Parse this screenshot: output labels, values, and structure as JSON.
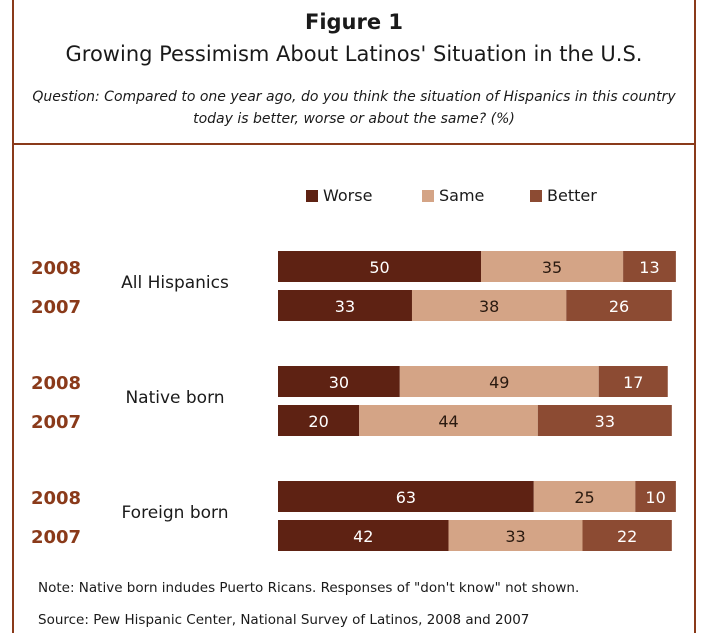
{
  "figure_label": "Figure 1",
  "title": "Growing Pessimism About Latinos' Situation in the U.S.",
  "question": "Question: Compared to one year ago, do you think the situation of Hispanics in this country today is better, worse or about the same? (%)",
  "note": "Note: Native born indudes Puerto Ricans. Responses of \"don't know\" not shown.",
  "source": "Source: Pew Hispanic Center, National Survey of Latinos, 2008 and 2007",
  "chart_data": {
    "type": "bar",
    "orientation": "horizontal",
    "stacked": true,
    "legend": [
      {
        "name": "Worse",
        "color": "#5e2213"
      },
      {
        "name": "Same",
        "color": "#d4a486"
      },
      {
        "name": "Better",
        "color": "#8c4b33"
      }
    ],
    "legend_position": "top",
    "groups": [
      {
        "label": "All Hispanics",
        "rows": [
          {
            "year": "2008",
            "values": [
              50,
              35,
              13
            ]
          },
          {
            "year": "2007",
            "values": [
              33,
              38,
              26
            ]
          }
        ]
      },
      {
        "label": "Native born",
        "rows": [
          {
            "year": "2008",
            "values": [
              30,
              49,
              17
            ]
          },
          {
            "year": "2007",
            "values": [
              20,
              44,
              33
            ]
          }
        ]
      },
      {
        "label": "Foreign born",
        "rows": [
          {
            "year": "2008",
            "values": [
              63,
              25,
              10
            ]
          },
          {
            "year": "2007",
            "values": [
              42,
              33,
              22
            ]
          }
        ]
      }
    ],
    "year_color": "#8a3a1a",
    "xlim": [
      0,
      100
    ],
    "grid": false
  }
}
